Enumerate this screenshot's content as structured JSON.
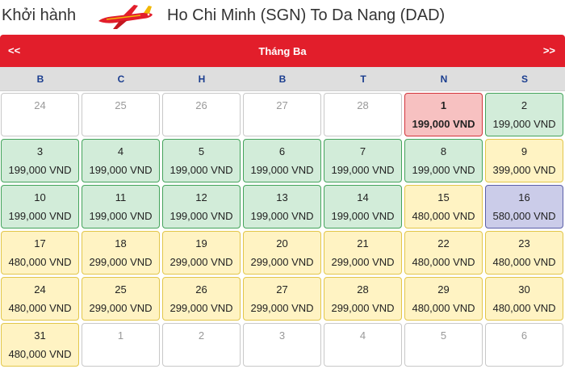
{
  "header": {
    "depart_label": "Khởi hành",
    "plane_icon": "airplane-icon",
    "route": "Ho Chi Minh (SGN) To Da Nang (DAD)"
  },
  "calendar": {
    "prev_label": "<<",
    "next_label": ">>",
    "month": "Tháng Ba",
    "weekdays": [
      "B",
      "C",
      "H",
      "B",
      "T",
      "N",
      "S"
    ],
    "colors": {
      "bar": "#e21e2b",
      "green": "#d2ecd9",
      "yellow": "#fff3c3",
      "selected": "#f7c1c1",
      "purple": "#cbcce9"
    },
    "weeks": [
      [
        {
          "day": "24",
          "price": "",
          "status": "inactive"
        },
        {
          "day": "25",
          "price": "",
          "status": "inactive"
        },
        {
          "day": "26",
          "price": "",
          "status": "inactive"
        },
        {
          "day": "27",
          "price": "",
          "status": "inactive"
        },
        {
          "day": "28",
          "price": "",
          "status": "inactive"
        },
        {
          "day": "1",
          "price": "199,000 VND",
          "status": "selected"
        },
        {
          "day": "2",
          "price": "199,000 VND",
          "status": "green"
        }
      ],
      [
        {
          "day": "3",
          "price": "199,000 VND",
          "status": "green"
        },
        {
          "day": "4",
          "price": "199,000 VND",
          "status": "green"
        },
        {
          "day": "5",
          "price": "199,000 VND",
          "status": "green"
        },
        {
          "day": "6",
          "price": "199,000 VND",
          "status": "green"
        },
        {
          "day": "7",
          "price": "199,000 VND",
          "status": "green"
        },
        {
          "day": "8",
          "price": "199,000 VND",
          "status": "green"
        },
        {
          "day": "9",
          "price": "399,000 VND",
          "status": "yellow"
        }
      ],
      [
        {
          "day": "10",
          "price": "199,000 VND",
          "status": "green"
        },
        {
          "day": "11",
          "price": "199,000 VND",
          "status": "green"
        },
        {
          "day": "12",
          "price": "199,000 VND",
          "status": "green"
        },
        {
          "day": "13",
          "price": "199,000 VND",
          "status": "green"
        },
        {
          "day": "14",
          "price": "199,000 VND",
          "status": "green"
        },
        {
          "day": "15",
          "price": "480,000 VND",
          "status": "yellow"
        },
        {
          "day": "16",
          "price": "580,000 VND",
          "status": "purple"
        }
      ],
      [
        {
          "day": "17",
          "price": "480,000 VND",
          "status": "yellow"
        },
        {
          "day": "18",
          "price": "299,000 VND",
          "status": "yellow"
        },
        {
          "day": "19",
          "price": "299,000 VND",
          "status": "yellow"
        },
        {
          "day": "20",
          "price": "299,000 VND",
          "status": "yellow"
        },
        {
          "day": "21",
          "price": "299,000 VND",
          "status": "yellow"
        },
        {
          "day": "22",
          "price": "480,000 VND",
          "status": "yellow"
        },
        {
          "day": "23",
          "price": "480,000 VND",
          "status": "yellow"
        }
      ],
      [
        {
          "day": "24",
          "price": "480,000 VND",
          "status": "yellow"
        },
        {
          "day": "25",
          "price": "299,000 VND",
          "status": "yellow"
        },
        {
          "day": "26",
          "price": "299,000 VND",
          "status": "yellow"
        },
        {
          "day": "27",
          "price": "299,000 VND",
          "status": "yellow"
        },
        {
          "day": "28",
          "price": "299,000 VND",
          "status": "yellow"
        },
        {
          "day": "29",
          "price": "480,000 VND",
          "status": "yellow"
        },
        {
          "day": "30",
          "price": "480,000 VND",
          "status": "yellow"
        }
      ],
      [
        {
          "day": "31",
          "price": "480,000 VND",
          "status": "yellow"
        },
        {
          "day": "1",
          "price": "",
          "status": "inactive"
        },
        {
          "day": "2",
          "price": "",
          "status": "inactive"
        },
        {
          "day": "3",
          "price": "",
          "status": "inactive"
        },
        {
          "day": "4",
          "price": "",
          "status": "inactive"
        },
        {
          "day": "5",
          "price": "",
          "status": "inactive"
        },
        {
          "day": "6",
          "price": "",
          "status": "inactive"
        }
      ]
    ]
  }
}
